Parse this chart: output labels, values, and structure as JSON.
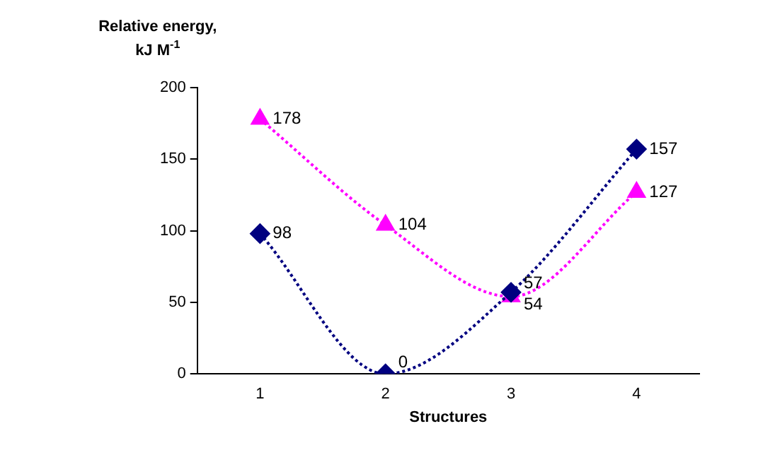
{
  "chart_data": {
    "type": "line",
    "ylabel": "Relative energy, kJ M$^{-1}$",
    "xlabel": "Structures",
    "categories": [
      "1",
      "2",
      "3",
      "4"
    ],
    "series": [
      {
        "color": "#000080",
        "marker": "diamond",
        "values": [
          98,
          0,
          57,
          157
        ]
      },
      {
        "color": "#ff00ff",
        "marker": "triangle",
        "values": [
          178,
          104,
          54,
          127
        ]
      }
    ],
    "ylim": [
      0,
      200
    ],
    "yticks": [
      0,
      50,
      100,
      150,
      200
    ],
    "grid": false,
    "legend": false,
    "line_style": "dotted",
    "data_labels": true
  }
}
